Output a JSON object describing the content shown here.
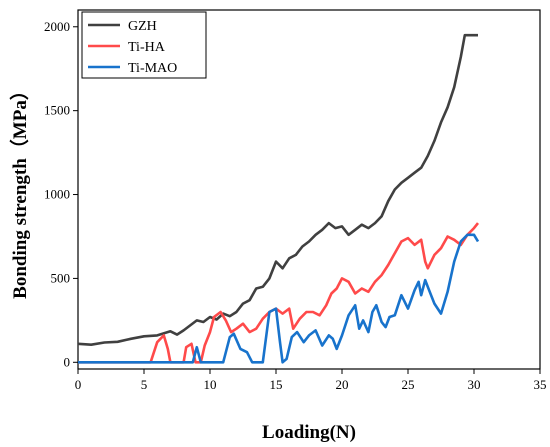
{
  "chart_data": {
    "type": "line",
    "xlabel": "Loading(N)",
    "ylabel": "Bonding strength（MPa）",
    "xlim": [
      0,
      35
    ],
    "ylim": [
      -40,
      2100
    ],
    "xticks": [
      0,
      5,
      10,
      15,
      20,
      25,
      30,
      35
    ],
    "yticks": [
      0,
      500,
      1000,
      1500,
      2000
    ],
    "grid": false,
    "legend_position": "top-left",
    "series": [
      {
        "name": "GZH",
        "color": "#404040",
        "points": [
          [
            0,
            110
          ],
          [
            1,
            105
          ],
          [
            2,
            118
          ],
          [
            3,
            122
          ],
          [
            4,
            140
          ],
          [
            5,
            155
          ],
          [
            6,
            160
          ],
          [
            7,
            185
          ],
          [
            7.5,
            165
          ],
          [
            8,
            190
          ],
          [
            8.5,
            220
          ],
          [
            9,
            250
          ],
          [
            9.5,
            240
          ],
          [
            10,
            270
          ],
          [
            10.5,
            255
          ],
          [
            11,
            290
          ],
          [
            11.5,
            275
          ],
          [
            12,
            300
          ],
          [
            12.5,
            350
          ],
          [
            13,
            370
          ],
          [
            13.5,
            440
          ],
          [
            14,
            450
          ],
          [
            14.5,
            500
          ],
          [
            15,
            600
          ],
          [
            15.5,
            560
          ],
          [
            16,
            620
          ],
          [
            16.5,
            640
          ],
          [
            17,
            690
          ],
          [
            17.5,
            720
          ],
          [
            18,
            760
          ],
          [
            18.5,
            790
          ],
          [
            19,
            830
          ],
          [
            19.5,
            800
          ],
          [
            20,
            810
          ],
          [
            20.5,
            760
          ],
          [
            21,
            790
          ],
          [
            21.5,
            820
          ],
          [
            22,
            800
          ],
          [
            22.5,
            830
          ],
          [
            23,
            870
          ],
          [
            23.5,
            960
          ],
          [
            24,
            1030
          ],
          [
            24.5,
            1070
          ],
          [
            25,
            1100
          ],
          [
            25.5,
            1130
          ],
          [
            26,
            1160
          ],
          [
            26.5,
            1230
          ],
          [
            27,
            1320
          ],
          [
            27.5,
            1430
          ],
          [
            28,
            1520
          ],
          [
            28.5,
            1640
          ],
          [
            29,
            1820
          ],
          [
            29.3,
            1950
          ],
          [
            30,
            1950
          ],
          [
            30.3,
            1950
          ]
        ]
      },
      {
        "name": "Ti-HA",
        "color": "#ff4a4a",
        "points": [
          [
            0,
            0
          ],
          [
            5.5,
            0
          ],
          [
            6,
            120
          ],
          [
            6.5,
            160
          ],
          [
            6.8,
            80
          ],
          [
            7,
            0
          ],
          [
            8,
            0
          ],
          [
            8.2,
            90
          ],
          [
            8.6,
            110
          ],
          [
            8.9,
            0
          ],
          [
            9.3,
            0
          ],
          [
            9.6,
            100
          ],
          [
            10,
            180
          ],
          [
            10.3,
            270
          ],
          [
            10.8,
            300
          ],
          [
            11.2,
            250
          ],
          [
            11.6,
            180
          ],
          [
            12,
            200
          ],
          [
            12.5,
            230
          ],
          [
            13,
            180
          ],
          [
            13.5,
            200
          ],
          [
            14,
            260
          ],
          [
            14.5,
            300
          ],
          [
            15,
            320
          ],
          [
            15.5,
            290
          ],
          [
            16,
            320
          ],
          [
            16.3,
            200
          ],
          [
            16.8,
            260
          ],
          [
            17.3,
            300
          ],
          [
            17.8,
            300
          ],
          [
            18.3,
            280
          ],
          [
            18.8,
            340
          ],
          [
            19.2,
            410
          ],
          [
            19.6,
            440
          ],
          [
            20,
            500
          ],
          [
            20.5,
            480
          ],
          [
            21,
            410
          ],
          [
            21.5,
            440
          ],
          [
            22,
            420
          ],
          [
            22.5,
            480
          ],
          [
            23,
            520
          ],
          [
            23.5,
            580
          ],
          [
            24,
            650
          ],
          [
            24.5,
            720
          ],
          [
            25,
            740
          ],
          [
            25.5,
            700
          ],
          [
            26,
            730
          ],
          [
            26.3,
            600
          ],
          [
            26.5,
            560
          ],
          [
            27,
            640
          ],
          [
            27.5,
            680
          ],
          [
            28,
            750
          ],
          [
            28.5,
            730
          ],
          [
            29,
            700
          ],
          [
            29.5,
            760
          ],
          [
            30,
            800
          ],
          [
            30.3,
            830
          ]
        ]
      },
      {
        "name": "Ti-MAO",
        "color": "#1873cc",
        "points": [
          [
            0,
            0
          ],
          [
            8.7,
            0
          ],
          [
            9,
            90
          ],
          [
            9.3,
            0
          ],
          [
            11,
            0
          ],
          [
            11.5,
            150
          ],
          [
            11.8,
            170
          ],
          [
            12.3,
            80
          ],
          [
            12.8,
            60
          ],
          [
            13.2,
            0
          ],
          [
            14,
            0
          ],
          [
            14.5,
            300
          ],
          [
            15,
            320
          ],
          [
            15.3,
            120
          ],
          [
            15.5,
            0
          ],
          [
            15.8,
            20
          ],
          [
            16.2,
            150
          ],
          [
            16.6,
            180
          ],
          [
            17.1,
            120
          ],
          [
            17.5,
            160
          ],
          [
            18,
            190
          ],
          [
            18.5,
            100
          ],
          [
            19,
            160
          ],
          [
            19.3,
            140
          ],
          [
            19.6,
            80
          ],
          [
            20,
            160
          ],
          [
            20.5,
            280
          ],
          [
            21,
            340
          ],
          [
            21.3,
            200
          ],
          [
            21.6,
            250
          ],
          [
            22,
            180
          ],
          [
            22.3,
            300
          ],
          [
            22.6,
            340
          ],
          [
            23,
            240
          ],
          [
            23.3,
            210
          ],
          [
            23.6,
            270
          ],
          [
            24,
            280
          ],
          [
            24.5,
            400
          ],
          [
            25,
            320
          ],
          [
            25.5,
            430
          ],
          [
            25.8,
            480
          ],
          [
            26,
            400
          ],
          [
            26.3,
            490
          ],
          [
            26.6,
            430
          ],
          [
            27,
            350
          ],
          [
            27.5,
            290
          ],
          [
            28,
            420
          ],
          [
            28.5,
            600
          ],
          [
            29,
            720
          ],
          [
            29.5,
            760
          ],
          [
            30,
            760
          ],
          [
            30.3,
            720
          ]
        ]
      }
    ]
  }
}
